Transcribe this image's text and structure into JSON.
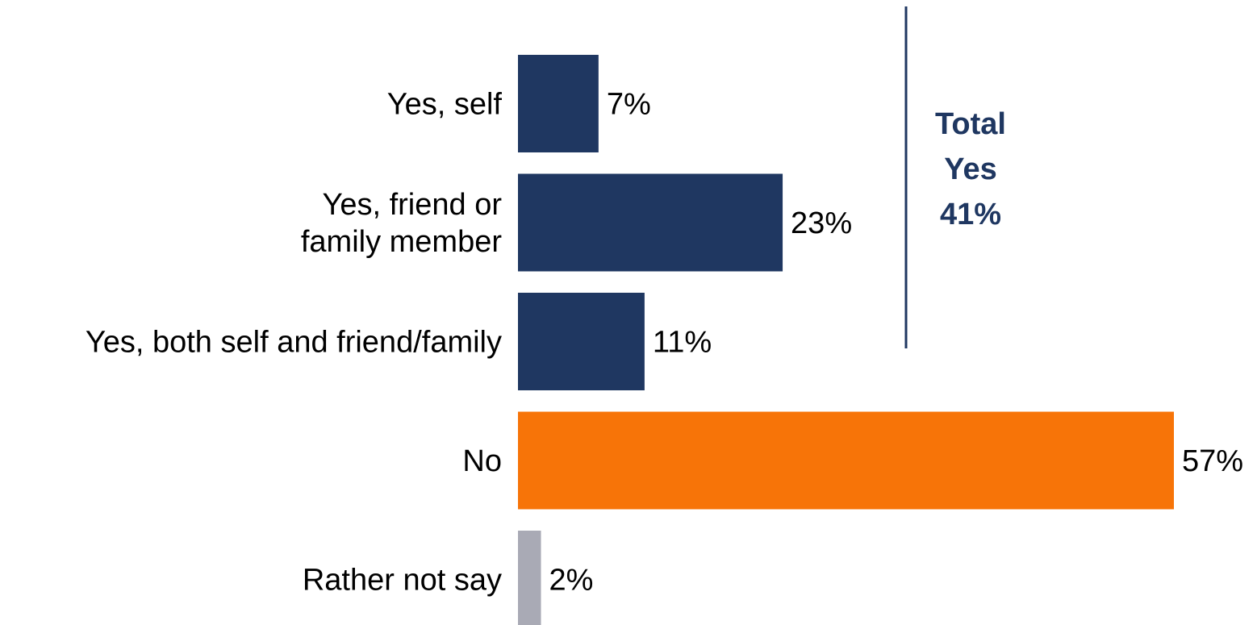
{
  "chart_data": {
    "type": "bar",
    "orientation": "horizontal",
    "categories": [
      [
        "Yes, self"
      ],
      [
        "Yes, friend or",
        "family member"
      ],
      [
        "Yes, both self and friend/family"
      ],
      [
        "No"
      ],
      [
        "Rather not say"
      ]
    ],
    "values": [
      7,
      23,
      11,
      57,
      2
    ],
    "value_labels": [
      "7%",
      "23%",
      "11%",
      "57%",
      "2%"
    ],
    "bar_colors": [
      "#1f3761",
      "#1f3761",
      "#1f3761",
      "#f77408",
      "#a9aab5"
    ],
    "unit": "%",
    "xlim": [
      0,
      57
    ],
    "grid": false,
    "legend": "none",
    "annotation": {
      "lines": [
        "Total",
        "Yes",
        "41%"
      ],
      "color": "#1f3761",
      "bracket_color": "#1f3761"
    }
  }
}
